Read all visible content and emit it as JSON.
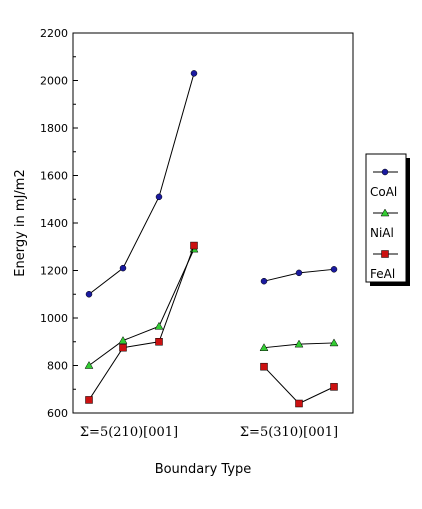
{
  "chart_data": {
    "type": "line",
    "ylabel": "Energy in mJ/m2",
    "xlabel": "Boundary Type",
    "ylim": [
      600,
      2200
    ],
    "yticks": [
      600,
      800,
      1000,
      1200,
      1400,
      1600,
      1800,
      2000,
      2200
    ],
    "groups": [
      {
        "label": "Σ=5(210)[001]",
        "points": 4
      },
      {
        "label": "Σ=5(310)[001]",
        "points": 3
      }
    ],
    "series": [
      {
        "name": "CoAl",
        "color": "#1a1aa0",
        "marker": "circle",
        "groups": [
          [
            1100,
            1210,
            1510,
            2030
          ],
          [
            1155,
            1190,
            1205
          ]
        ]
      },
      {
        "name": "NiAl",
        "color": "#33cc33",
        "marker": "triangle",
        "groups": [
          [
            800,
            905,
            965,
            1290
          ],
          [
            875,
            890,
            895
          ]
        ]
      },
      {
        "name": "FeAl",
        "color": "#cc1111",
        "marker": "square",
        "groups": [
          [
            655,
            875,
            900,
            1305
          ],
          [
            795,
            640,
            710
          ]
        ]
      }
    ],
    "legend_position": "right",
    "grid": false
  }
}
